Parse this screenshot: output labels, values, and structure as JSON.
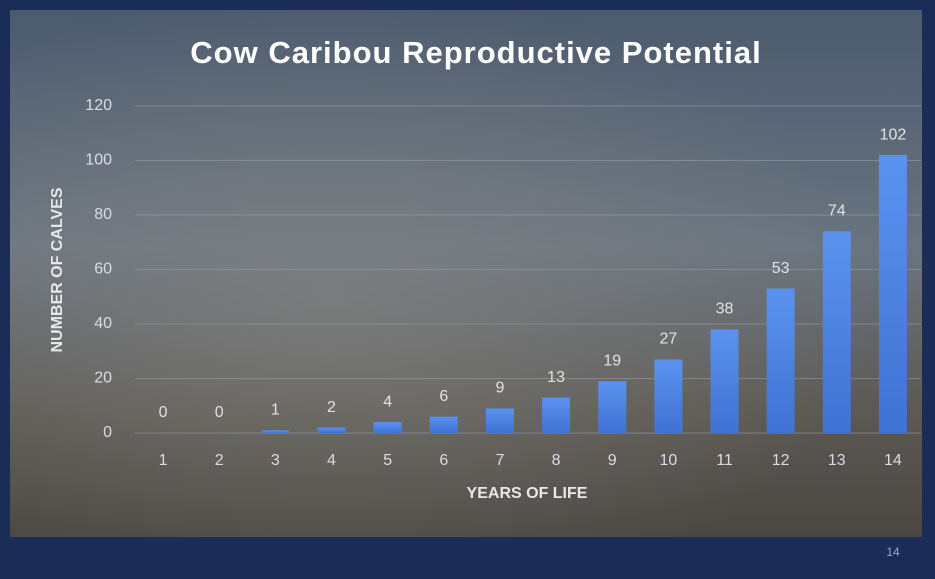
{
  "chart_data": {
    "type": "bar",
    "title": "Cow Caribou Reproductive Potential",
    "x_label": "YEARS OF LIFE",
    "y_label": "NUMBER OF CALVES",
    "categories": [
      "1",
      "2",
      "3",
      "4",
      "5",
      "6",
      "7",
      "8",
      "9",
      "10",
      "11",
      "12",
      "13",
      "14"
    ],
    "values": [
      0,
      0,
      1,
      2,
      4,
      6,
      9,
      13,
      19,
      27,
      38,
      53,
      74,
      102
    ],
    "color": "#4f86e6",
    "ylim": [
      0,
      120
    ],
    "yticks": [
      0,
      20,
      40,
      60,
      80,
      100,
      120
    ],
    "grid": true
  },
  "slide": {
    "page_number": "14"
  }
}
